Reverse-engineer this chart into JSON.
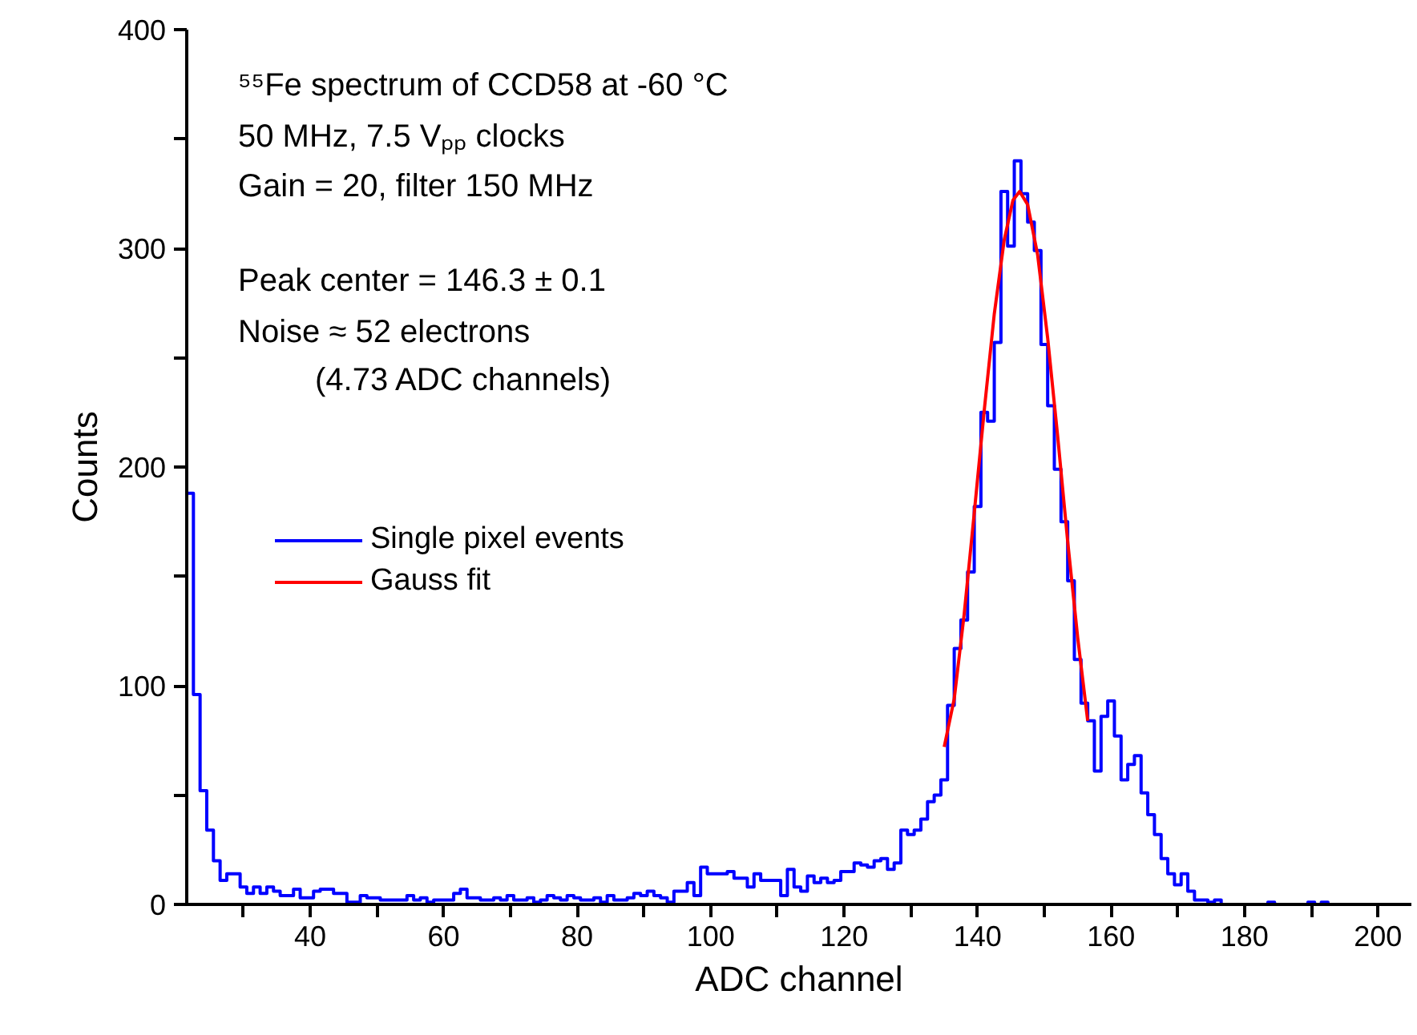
{
  "chart_data": {
    "type": "histogram",
    "xlabel": "ADC channel",
    "ylabel": "Counts",
    "annotations": [
      "⁵⁵Fe spectrum of CCD58 at -60 °C",
      "50 MHz, 7.5 Vₚₚ clocks",
      "Gain = 20, filter 150 MHz",
      "Peak center = 146.3 ± 0.1",
      "Noise ≈ 52 electrons",
      "(4.73 ADC channels)"
    ],
    "xlim": [
      21.5,
      205
    ],
    "ylim": [
      0,
      400
    ],
    "xticks": [
      {
        "value": 30,
        "label": null
      },
      40,
      {
        "value": 50,
        "label": null
      },
      60,
      {
        "value": 70,
        "label": null
      },
      80,
      {
        "value": 90,
        "label": null
      },
      100,
      {
        "value": 110,
        "label": null
      },
      120,
      {
        "value": 130,
        "label": null
      },
      140,
      {
        "value": 150,
        "label": null
      },
      160,
      {
        "value": 170,
        "label": null
      },
      180,
      {
        "value": 190,
        "label": null
      },
      200
    ],
    "yticks": [
      0,
      {
        "value": 50,
        "label": null
      },
      100,
      {
        "value": 150,
        "label": null
      },
      200,
      {
        "value": 250,
        "label": null
      },
      300,
      {
        "value": 350,
        "label": null
      },
      400
    ],
    "grid": false,
    "legend": "left",
    "series": [
      {
        "name": "Single pixel events",
        "color": "#0000ff",
        "bins": [
          21.5,
          22.5,
          23.5,
          24.5,
          25.5,
          26.5,
          27.5,
          28.5,
          29.5,
          30.5,
          31.5,
          32.5,
          33.5,
          34.5,
          35.5,
          36.5,
          37.5,
          38.5,
          39.5,
          40.5,
          41.5,
          42.5,
          43.5,
          44.5,
          45.5,
          46.5,
          47.5,
          48.5,
          49.5,
          50.5,
          51.5,
          52.5,
          53.5,
          54.5,
          55.5,
          56.5,
          57.5,
          58.5,
          59.5,
          60.5,
          61.5,
          62.5,
          63.5,
          64.5,
          65.5,
          66.5,
          67.5,
          68.5,
          69.5,
          70.5,
          71.5,
          72.5,
          73.5,
          74.5,
          75.5,
          76.5,
          77.5,
          78.5,
          79.5,
          80.5,
          81.5,
          82.5,
          83.5,
          84.5,
          85.5,
          86.5,
          87.5,
          88.5,
          89.5,
          90.5,
          91.5,
          92.5,
          93.5,
          94.5,
          95.5,
          96.5,
          97.5,
          98.5,
          99.5,
          100.5,
          101.5,
          102.5,
          103.5,
          104.5,
          105.5,
          106.5,
          107.5,
          108.5,
          109.5,
          110.5,
          111.5,
          112.5,
          113.5,
          114.5,
          115.5,
          116.5,
          117.5,
          118.5,
          119.5,
          120.5,
          121.5,
          122.5,
          123.5,
          124.5,
          125.5,
          126.5,
          127.5,
          128.5,
          129.5,
          130.5,
          131.5,
          132.5,
          133.5,
          134.5,
          135.5,
          136.5,
          137.5,
          138.5,
          139.5,
          140.5,
          141.5,
          142.5,
          143.5,
          144.5,
          145.5,
          146.5,
          147.5,
          148.5,
          149.5,
          150.5,
          151.5,
          152.5,
          153.5,
          154.5,
          155.5,
          156.5,
          157.5,
          158.5,
          159.5,
          160.5,
          161.5,
          162.5,
          163.5,
          164.5,
          165.5,
          166.5,
          167.5,
          168.5,
          169.5,
          170.5,
          171.5,
          172.5,
          173.5,
          174.5,
          175.5,
          176.5,
          177.5,
          178.5,
          179.5,
          180.5,
          181.5,
          182.5,
          183.5,
          184.5,
          185.5,
          186.5,
          187.5,
          188.5,
          189.5,
          190.5,
          191.5,
          192.5
        ],
        "values": [
          188,
          96,
          52,
          34,
          20,
          11,
          14,
          14,
          8,
          5,
          8,
          5,
          8,
          6,
          4,
          4,
          7,
          3,
          3,
          6,
          7,
          7,
          5,
          5,
          1,
          1,
          4,
          3,
          3,
          2,
          2,
          2,
          2,
          4,
          2,
          3,
          1,
          2,
          2,
          2,
          5,
          7,
          3,
          3,
          2,
          2,
          3,
          2,
          4,
          2,
          2,
          3,
          1,
          2,
          4,
          3,
          2,
          4,
          3,
          2,
          2,
          3,
          1,
          4,
          2,
          2,
          3,
          5,
          4,
          6,
          4,
          3,
          1,
          6,
          6,
          10,
          4,
          17,
          14,
          14,
          14,
          15,
          12,
          12,
          8,
          14,
          11,
          11,
          11,
          4,
          16,
          8,
          6,
          13,
          10,
          12,
          10,
          11,
          15,
          15,
          19,
          18,
          17,
          20,
          21,
          16,
          19,
          34,
          32,
          34,
          39,
          47,
          50,
          57,
          91,
          117,
          130,
          152,
          182,
          225,
          221,
          257,
          326,
          301,
          340,
          325,
          312,
          299,
          256,
          228,
          199,
          175,
          148,
          112,
          92,
          84,
          61,
          86,
          93,
          77,
          57,
          64,
          68,
          51,
          41,
          32,
          21,
          14,
          9,
          14,
          6,
          2,
          2,
          1,
          2,
          0,
          0,
          0,
          0,
          0,
          0,
          0,
          1,
          0,
          0,
          0,
          0,
          0,
          1,
          0,
          1
        ]
      },
      {
        "name": "Gauss fit",
        "color": "#ff0000",
        "type": "line",
        "x": [
          135,
          136.5,
          138,
          139.5,
          141,
          142.5,
          144,
          145.3,
          146.3,
          147.5,
          149,
          150.5,
          152,
          153.5,
          155,
          156.5
        ],
        "values": [
          72,
          94,
          133,
          179,
          226,
          270,
          304,
          322,
          326,
          320,
          297,
          259,
          214,
          166,
          122,
          84
        ]
      }
    ]
  }
}
